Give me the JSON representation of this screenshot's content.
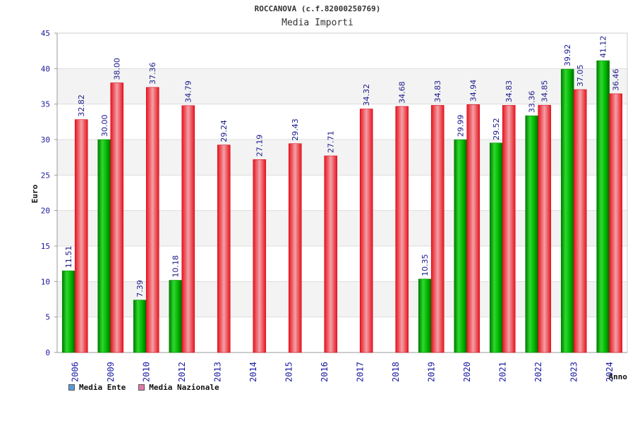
{
  "chart_data": {
    "type": "bar",
    "title": "ROCCANOVA (c.f.82000250769)",
    "subtitle": "Media Importi",
    "xlabel": "Anno",
    "ylabel": "Euro",
    "ylim": [
      0,
      45
    ],
    "yticks": [
      0,
      5,
      10,
      15,
      20,
      25,
      30,
      35,
      40,
      45
    ],
    "grid": true,
    "legend_position": "bottom-left",
    "categories": [
      "2006",
      "2009",
      "2010",
      "2012",
      "2013",
      "2014",
      "2015",
      "2016",
      "2017",
      "2018",
      "2019",
      "2020",
      "2021",
      "2022",
      "2023",
      "2024"
    ],
    "series": [
      {
        "name": "Media Ente",
        "color": "#00b400",
        "legend_color": "#5b9bd5",
        "values": [
          11.51,
          30.0,
          7.39,
          10.18,
          null,
          null,
          null,
          null,
          null,
          null,
          10.35,
          29.99,
          29.52,
          33.36,
          39.92,
          41.12
        ],
        "labels": [
          "11.51",
          "30.00",
          "7.39",
          "10.18",
          null,
          null,
          null,
          null,
          null,
          null,
          "10.35",
          "29.99",
          "29.52",
          "33.36",
          "39.92",
          "41.12"
        ]
      },
      {
        "name": "Media Nazionale",
        "color": "#e8202a",
        "legend_color": "#e07aa8",
        "values": [
          32.82,
          38.0,
          37.36,
          34.79,
          29.24,
          27.19,
          29.43,
          27.71,
          34.32,
          34.68,
          34.83,
          34.94,
          34.83,
          34.85,
          37.05,
          36.46
        ],
        "labels": [
          "32.82",
          "38.00",
          "37.36",
          "34.79",
          "29.24",
          "27.19",
          "29.43",
          "27.71",
          "34.32",
          "34.68",
          "34.83",
          "34.94",
          "34.83",
          "34.85",
          "37.05",
          "36.46"
        ]
      }
    ]
  }
}
